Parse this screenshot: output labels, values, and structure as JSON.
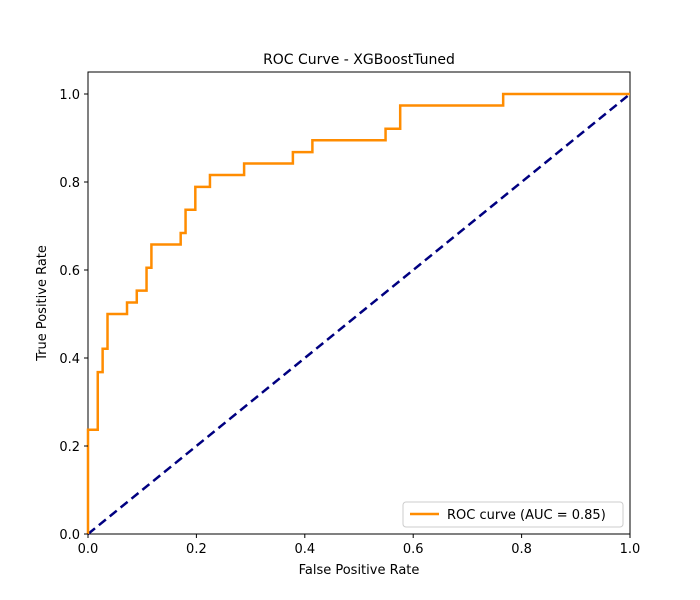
{
  "chart_data": {
    "type": "line",
    "title": "ROC Curve - XGBoostTuned",
    "xlabel": "False Positive Rate",
    "ylabel": "True Positive Rate",
    "xlim": [
      0.0,
      1.0
    ],
    "ylim": [
      0.0,
      1.05
    ],
    "x_ticks": [
      "0.0",
      "0.2",
      "0.4",
      "0.6",
      "0.8",
      "1.0"
    ],
    "y_ticks": [
      "0.0",
      "0.2",
      "0.4",
      "0.6",
      "0.8",
      "1.0"
    ],
    "x_tick_values": [
      0.0,
      0.2,
      0.4,
      0.6,
      0.8,
      1.0
    ],
    "y_tick_values": [
      0.0,
      0.2,
      0.4,
      0.6,
      0.8,
      1.0
    ],
    "grid": false,
    "legend_position": "lower-right",
    "series": [
      {
        "name": "ROC curve (AUC = 0.85)",
        "color": "#ff8c00",
        "style": "solid",
        "x": [
          0.0,
          0.0,
          0.018,
          0.018,
          0.027,
          0.027,
          0.036,
          0.036,
          0.045,
          0.045,
          0.072,
          0.072,
          0.09,
          0.09,
          0.108,
          0.108,
          0.117,
          0.117,
          0.171,
          0.171,
          0.18,
          0.18,
          0.198,
          0.198,
          0.207,
          0.207,
          0.225,
          0.225,
          0.288,
          0.288,
          0.378,
          0.378,
          0.414,
          0.414,
          0.549,
          0.549,
          0.576,
          0.576,
          0.766,
          0.766,
          1.0
        ],
        "y": [
          0.0,
          0.237,
          0.237,
          0.368,
          0.368,
          0.421,
          0.421,
          0.5,
          0.5,
          0.5,
          0.5,
          0.526,
          0.526,
          0.553,
          0.553,
          0.605,
          0.605,
          0.658,
          0.658,
          0.684,
          0.684,
          0.737,
          0.737,
          0.789,
          0.789,
          0.789,
          0.789,
          0.816,
          0.816,
          0.842,
          0.842,
          0.868,
          0.868,
          0.895,
          0.895,
          0.921,
          0.921,
          0.974,
          0.974,
          1.0,
          1.0
        ]
      },
      {
        "name": "",
        "color": "#000080",
        "style": "dashed",
        "x": [
          0.0,
          1.0
        ],
        "y": [
          0.0,
          1.0
        ]
      }
    ]
  }
}
